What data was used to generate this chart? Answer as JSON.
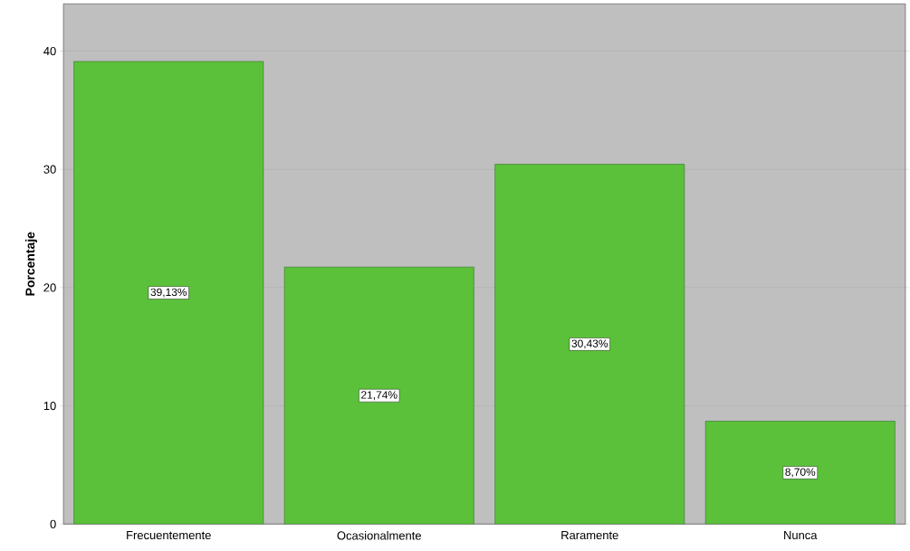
{
  "chart_data": {
    "type": "bar",
    "ylabel": "Porcentaje",
    "categories": [
      "Frecuentemente",
      "Ocasionalmente",
      "Raramente",
      "Nunca"
    ],
    "values": [
      39.13,
      21.74,
      30.43,
      8.7
    ],
    "value_labels": [
      "39,13%",
      "21,74%",
      "30,43%",
      "8,70%"
    ],
    "color": "#5cc13a",
    "ylim": [
      0,
      44
    ],
    "yticks": [
      0,
      10,
      20,
      30,
      40
    ],
    "grid": "y"
  }
}
